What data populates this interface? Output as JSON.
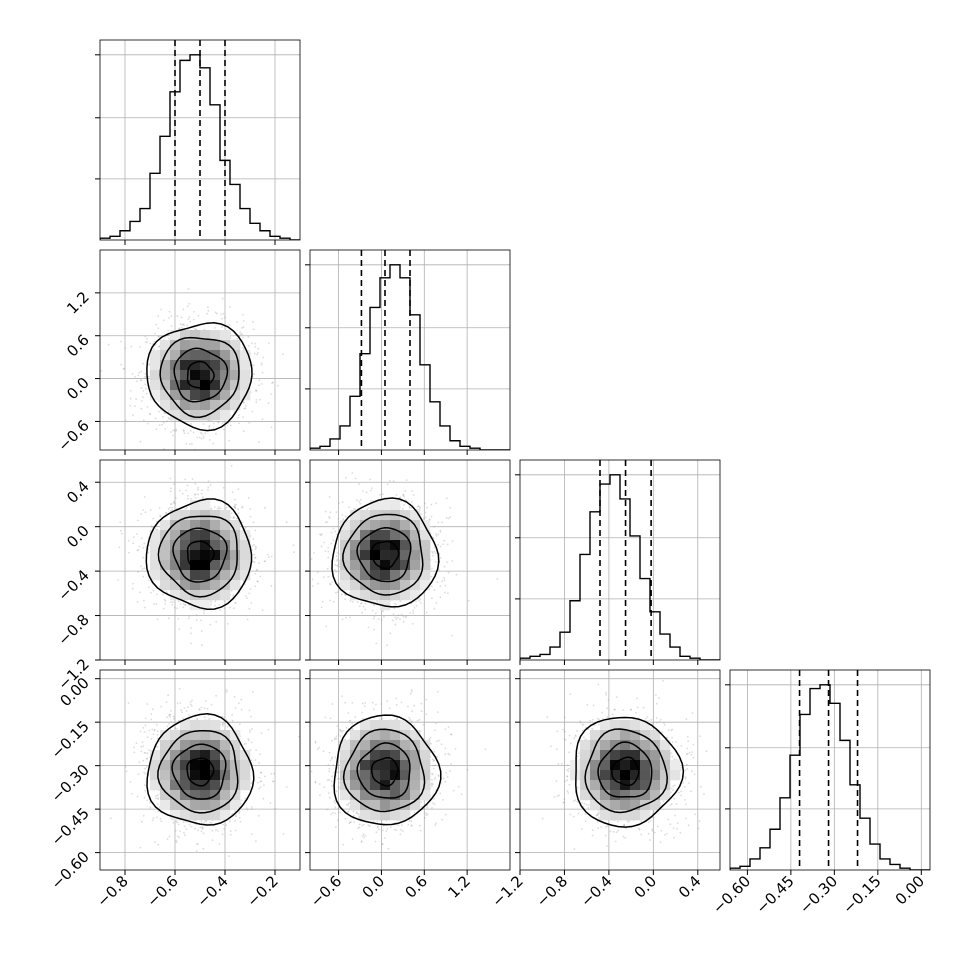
{
  "chart_data": {
    "type": "corner",
    "n_params": 4,
    "parameters": [
      {
        "index": 0,
        "range": [
          -0.9,
          -0.1
        ],
        "ticks": [
          -0.8,
          -0.6,
          -0.4,
          -0.2
        ],
        "tick_labels": [
          "−0.8",
          "−0.6",
          "−0.4",
          "−0.2"
        ],
        "mean": -0.5,
        "std": 0.1,
        "quantiles": [
          -0.6,
          -0.5,
          -0.4
        ],
        "histogram": [
          0.01,
          0.02,
          0.05,
          0.1,
          0.17,
          0.36,
          0.56,
          0.8,
          0.97,
          1.0,
          0.93,
          0.73,
          0.43,
          0.3,
          0.17,
          0.09,
          0.05,
          0.02,
          0.01,
          0.0
        ]
      },
      {
        "index": 1,
        "range": [
          -1.0,
          1.8
        ],
        "ticks": [
          -0.6,
          0.0,
          0.6,
          1.2
        ],
        "tick_labels": [
          "−0.6",
          "0.0",
          "0.6",
          "1.2"
        ],
        "mean": 0.05,
        "std": 0.35,
        "quantiles": [
          -0.28,
          0.05,
          0.4
        ],
        "histogram": [
          0.01,
          0.02,
          0.06,
          0.13,
          0.29,
          0.52,
          0.77,
          0.93,
          1.0,
          0.93,
          0.73,
          0.46,
          0.26,
          0.13,
          0.05,
          0.02,
          0.01,
          0.0,
          0.0,
          0.0
        ]
      },
      {
        "index": 2,
        "range": [
          -1.2,
          0.6
        ],
        "ticks": [
          -1.2,
          -0.8,
          -0.4,
          0.0,
          0.4
        ],
        "tick_labels": [
          "−1.2",
          "−0.8",
          "−0.4",
          "0.0",
          "0.4"
        ],
        "mean": -0.25,
        "std": 0.23,
        "quantiles": [
          -0.48,
          -0.25,
          -0.02
        ],
        "histogram": [
          0.01,
          0.02,
          0.03,
          0.07,
          0.15,
          0.32,
          0.57,
          0.8,
          0.95,
          1.0,
          0.87,
          0.67,
          0.44,
          0.26,
          0.14,
          0.07,
          0.02,
          0.01,
          0.0,
          0.0
        ]
      },
      {
        "index": 3,
        "range": [
          -0.66,
          0.03
        ],
        "ticks": [
          -0.6,
          -0.45,
          -0.3,
          -0.15,
          0.0
        ],
        "tick_labels": [
          "−0.60",
          "−0.45",
          "−0.30",
          "−0.15",
          "0.00"
        ],
        "mean": -0.32,
        "std": 0.09,
        "quantiles": [
          -0.42,
          -0.32,
          -0.22
        ],
        "histogram": [
          0.01,
          0.02,
          0.06,
          0.12,
          0.22,
          0.39,
          0.62,
          0.84,
          0.98,
          1.0,
          0.9,
          0.7,
          0.46,
          0.28,
          0.14,
          0.06,
          0.03,
          0.01,
          0.0,
          0.0
        ]
      }
    ],
    "contour_levels_sigma": [
      0.5,
      1.0,
      1.5,
      2.0
    ],
    "histogram_bins": 20,
    "scatter_samples": true,
    "grid": true,
    "quantile_lines": "dashed",
    "colors": {
      "line": "#000000",
      "grid": "#b0b0b0",
      "scatter": "#9a9a9a",
      "density_dark": "#000000",
      "density_light": "#ffffff"
    },
    "title": "",
    "legend": "none"
  }
}
